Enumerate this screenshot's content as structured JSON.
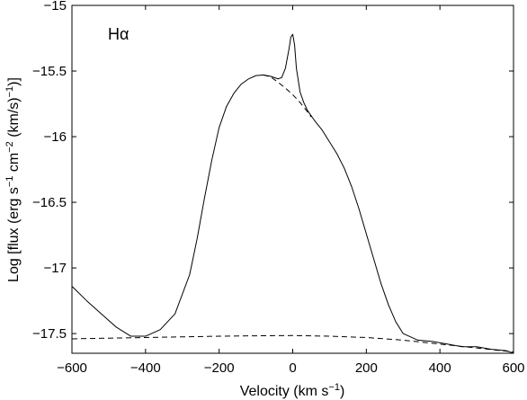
{
  "chart_data": {
    "type": "line",
    "xlabel_main": "Velocity (km s",
    "xlabel_sup": "−1",
    "xlabel_tail": ")",
    "ylabel": {
      "p1": "Log [flux (erg s",
      "s1": "−1",
      "p2": " cm",
      "s2": "−2",
      "p3": " (km/s)",
      "s3": "−1",
      "p4": ")]"
    },
    "annotation": "Hα",
    "xlim": [
      -600,
      600
    ],
    "ylim": [
      -17.65,
      -15
    ],
    "xticks": [
      -600,
      -400,
      -200,
      0,
      200,
      400,
      600
    ],
    "xtick_labels": [
      "−600",
      "−400",
      "−200",
      "0",
      "200",
      "400",
      "600"
    ],
    "yticks": [
      -15,
      -15.5,
      -16,
      -16.5,
      -17,
      -17.5
    ],
    "ytick_labels": [
      "−15",
      "−15.5",
      "−16",
      "−16.5",
      "−17",
      "−17.5"
    ],
    "grid": false,
    "series": [
      {
        "style": "solid",
        "x": [
          -600,
          -560,
          -520,
          -480,
          -440,
          -400,
          -360,
          -320,
          -280,
          -260,
          -240,
          -220,
          -200,
          -180,
          -160,
          -140,
          -120,
          -100,
          -80,
          -60,
          -40,
          -30,
          -20,
          -10,
          -5,
          0,
          5,
          10,
          20,
          30,
          40,
          60,
          80,
          100,
          120,
          140,
          160,
          180,
          200,
          220,
          240,
          260,
          280,
          300,
          340,
          380,
          420,
          460,
          500,
          540,
          580,
          600
        ],
        "y": [
          -17.14,
          -17.25,
          -17.35,
          -17.45,
          -17.52,
          -17.52,
          -17.47,
          -17.35,
          -17.05,
          -16.78,
          -16.47,
          -16.18,
          -15.93,
          -15.77,
          -15.67,
          -15.6,
          -15.56,
          -15.535,
          -15.53,
          -15.54,
          -15.56,
          -15.55,
          -15.48,
          -15.33,
          -15.24,
          -15.22,
          -15.3,
          -15.48,
          -15.66,
          -15.74,
          -15.8,
          -15.88,
          -15.95,
          -16.04,
          -16.13,
          -16.24,
          -16.38,
          -16.55,
          -16.74,
          -16.93,
          -17.12,
          -17.28,
          -17.41,
          -17.5,
          -17.55,
          -17.56,
          -17.58,
          -17.6,
          -17.6,
          -17.62,
          -17.63,
          -17.65
        ]
      },
      {
        "style": "dashed",
        "x": [
          -600,
          -500,
          -400,
          -300,
          -200,
          -100,
          0,
          100,
          200,
          300,
          400,
          500,
          600
        ],
        "y": [
          -17.54,
          -17.535,
          -17.53,
          -17.525,
          -17.52,
          -17.517,
          -17.515,
          -17.52,
          -17.53,
          -17.55,
          -17.58,
          -17.61,
          -17.64
        ]
      },
      {
        "style": "dashed",
        "x": [
          -80,
          -60,
          -40,
          -20,
          0,
          20,
          40,
          50
        ],
        "y": [
          -15.53,
          -15.545,
          -15.585,
          -15.63,
          -15.68,
          -15.74,
          -15.81,
          -15.85
        ]
      }
    ]
  }
}
